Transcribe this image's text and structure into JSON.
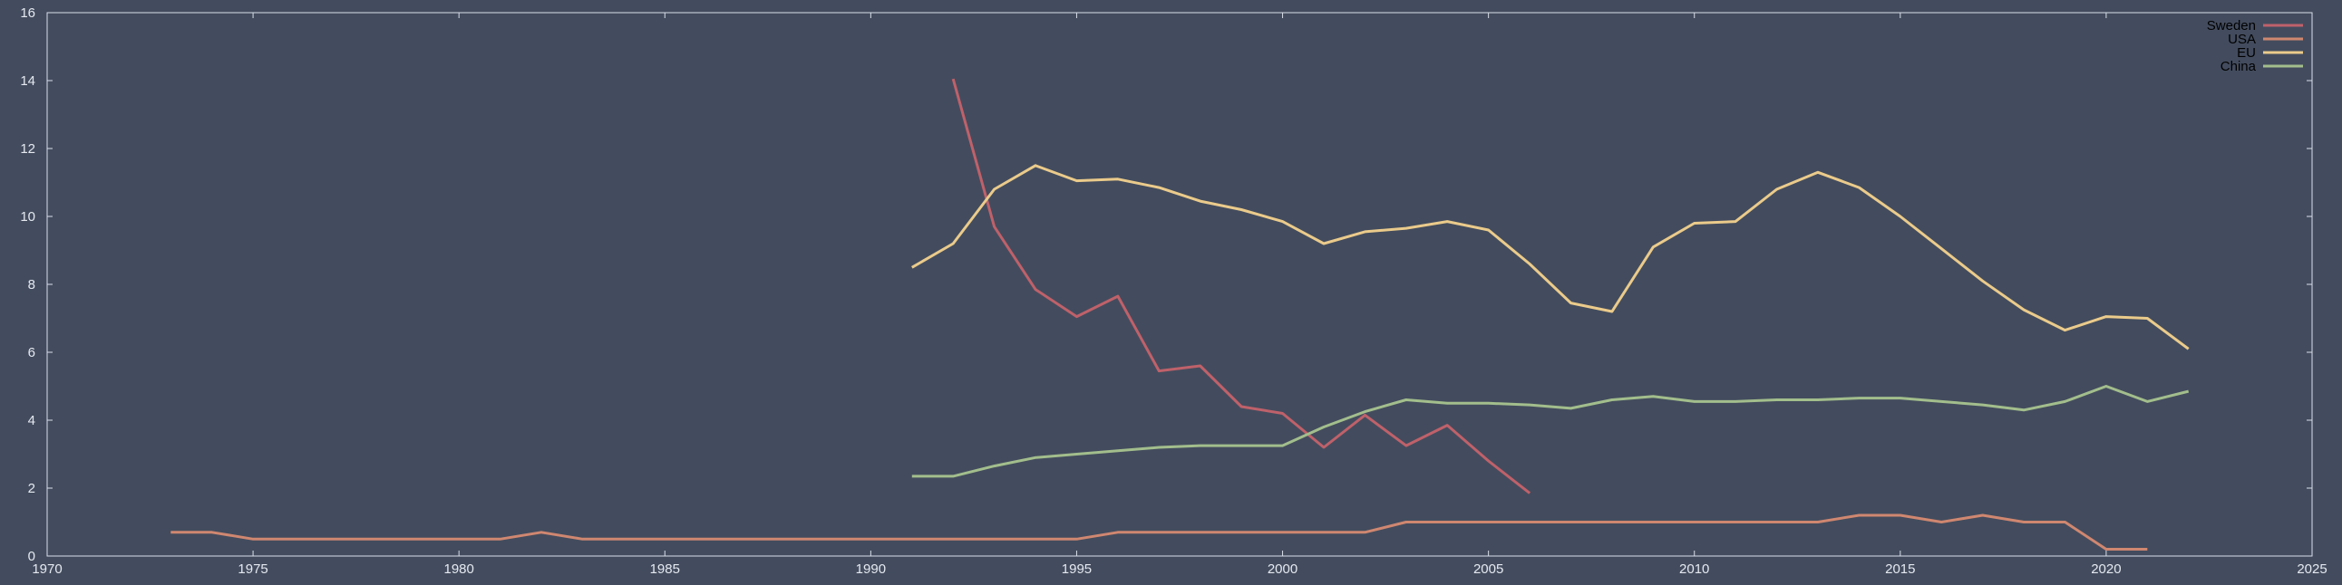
{
  "chart_data": {
    "type": "line",
    "title": "",
    "xlabel": "",
    "ylabel": "",
    "xlim": [
      1970,
      2025
    ],
    "ylim": [
      0,
      16
    ],
    "xticks": [
      1970,
      1975,
      1980,
      1985,
      1990,
      1995,
      2000,
      2005,
      2010,
      2015,
      2020,
      2025
    ],
    "yticks": [
      0,
      2,
      4,
      6,
      8,
      10,
      12,
      14,
      16
    ],
    "grid": false,
    "legend_position": "top-right",
    "series": [
      {
        "name": "Sweden",
        "color": "#bf616a",
        "x": [
          1992,
          1993,
          1994,
          1995,
          1996,
          1997,
          1998,
          1999,
          2000,
          2001,
          2002,
          2003,
          2004,
          2005,
          2006
        ],
        "y": [
          14.05,
          9.7,
          7.85,
          7.05,
          7.65,
          5.45,
          5.6,
          4.4,
          4.2,
          3.2,
          4.15,
          3.25,
          3.85,
          2.8,
          1.85
        ]
      },
      {
        "name": "USA",
        "color": "#d08770",
        "x": [
          1973,
          1974,
          1975,
          1976,
          1977,
          1978,
          1979,
          1980,
          1981,
          1982,
          1983,
          1984,
          1985,
          1986,
          1987,
          1988,
          1989,
          1990,
          1991,
          1992,
          1993,
          1994,
          1995,
          1996,
          1997,
          1998,
          1999,
          2000,
          2001,
          2002,
          2003,
          2004,
          2005,
          2006,
          2007,
          2008,
          2009,
          2010,
          2011,
          2012,
          2013,
          2014,
          2015,
          2016,
          2017,
          2018,
          2019,
          2020,
          2021
        ],
        "y": [
          0.7,
          0.7,
          0.5,
          0.5,
          0.5,
          0.5,
          0.5,
          0.5,
          0.5,
          0.7,
          0.5,
          0.5,
          0.5,
          0.5,
          0.5,
          0.5,
          0.5,
          0.5,
          0.5,
          0.5,
          0.5,
          0.5,
          0.5,
          0.7,
          0.7,
          0.7,
          0.7,
          0.7,
          0.7,
          0.7,
          1.0,
          1.0,
          1.0,
          1.0,
          1.0,
          1.0,
          1.0,
          1.0,
          1.0,
          1.0,
          1.0,
          1.2,
          1.2,
          1.0,
          1.2,
          1.0,
          1.0,
          0.2,
          0.2
        ]
      },
      {
        "name": "EU",
        "color": "#ebcb8b",
        "x": [
          1991,
          1992,
          1993,
          1994,
          1995,
          1996,
          1997,
          1998,
          1999,
          2000,
          2001,
          2002,
          2003,
          2004,
          2005,
          2006,
          2007,
          2008,
          2009,
          2010,
          2011,
          2012,
          2013,
          2014,
          2015,
          2016,
          2017,
          2018,
          2019,
          2020,
          2021,
          2022
        ],
        "y": [
          8.5,
          9.2,
          10.8,
          11.5,
          11.05,
          11.1,
          10.85,
          10.45,
          10.2,
          9.85,
          9.2,
          9.55,
          9.65,
          9.85,
          9.6,
          8.6,
          7.45,
          7.2,
          9.1,
          9.8,
          9.85,
          10.8,
          11.3,
          10.85,
          10.0,
          9.05,
          8.1,
          7.25,
          6.65,
          7.05,
          7.0,
          6.1
        ]
      },
      {
        "name": "China",
        "color": "#a3be8c",
        "x": [
          1991,
          1992,
          1993,
          1994,
          1995,
          1996,
          1997,
          1998,
          1999,
          2000,
          2001,
          2002,
          2003,
          2004,
          2005,
          2006,
          2007,
          2008,
          2009,
          2010,
          2011,
          2012,
          2013,
          2014,
          2015,
          2016,
          2017,
          2018,
          2019,
          2020,
          2021,
          2022
        ],
        "y": [
          2.35,
          2.35,
          2.65,
          2.9,
          3.0,
          3.1,
          3.2,
          3.25,
          3.25,
          3.25,
          3.8,
          4.25,
          4.6,
          4.5,
          4.5,
          4.45,
          4.35,
          4.6,
          4.7,
          4.55,
          4.55,
          4.6,
          4.6,
          4.65,
          4.65,
          4.55,
          4.45,
          4.3,
          4.55,
          5.0,
          4.55,
          4.85
        ]
      }
    ]
  }
}
